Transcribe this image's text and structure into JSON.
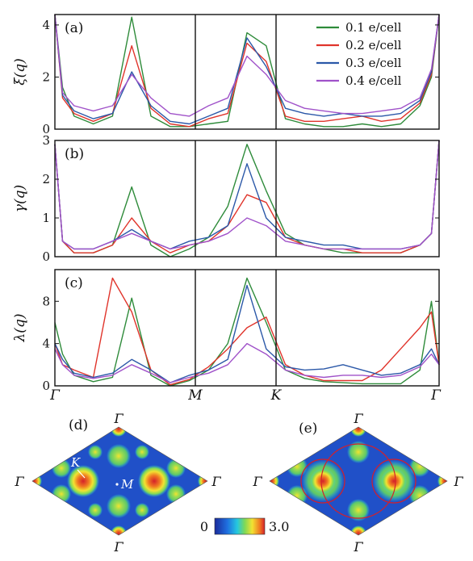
{
  "figure": {
    "panels": [
      {
        "label": "(a)",
        "ylabel": "ξ(q)",
        "yticks": [
          "0",
          "2",
          "4"
        ]
      },
      {
        "label": "(b)",
        "ylabel": "γ(q)",
        "yticks": [
          "0",
          "1",
          "2",
          "3"
        ]
      },
      {
        "label": "(c)",
        "ylabel": "λ(q)",
        "yticks": [
          "0",
          "4",
          "8"
        ]
      }
    ],
    "xticks": [
      "Γ",
      "M",
      "K",
      "Γ"
    ],
    "legend": [
      "0.1 e/cell",
      "0.2 e/cell",
      "0.3 e/cell",
      "0.4 e/cell"
    ],
    "maps": [
      {
        "label": "(d)",
        "corner_labels": [
          "Γ",
          "Γ",
          "Γ",
          "Γ"
        ],
        "point_labels": [
          "K",
          "M"
        ]
      },
      {
        "label": "(e)",
        "corner_labels": [
          "Γ",
          "Γ",
          "Γ",
          "Γ"
        ]
      }
    ],
    "colorbar": {
      "min_label": "0",
      "max_label": "3.0"
    }
  },
  "chart_data": [
    {
      "type": "line",
      "panel": "(a)",
      "ylabel": "ξ(q)",
      "ylim": [
        0,
        4.4
      ],
      "x_ticks": [
        "Γ",
        "M",
        "K",
        "Γ"
      ],
      "x": [
        0,
        0.02,
        0.05,
        0.1,
        0.15,
        0.2,
        0.25,
        0.3,
        0.35,
        0.4,
        0.45,
        0.5,
        0.55,
        0.6,
        0.65,
        0.7,
        0.75,
        0.8,
        0.85,
        0.9,
        0.95,
        0.98,
        1.0
      ],
      "series": [
        {
          "name": "0.1 e/cell",
          "color": "#2e8b3a",
          "values": [
            4.4,
            1.6,
            0.5,
            0.2,
            0.5,
            4.3,
            0.5,
            0.1,
            0.1,
            0.2,
            0.3,
            3.7,
            3.2,
            0.4,
            0.2,
            0.1,
            0.1,
            0.2,
            0.1,
            0.2,
            0.9,
            2.0,
            4.4
          ]
        },
        {
          "name": "0.2 e/cell",
          "color": "#e0342b",
          "values": [
            4.4,
            1.2,
            0.6,
            0.3,
            0.6,
            3.2,
            0.8,
            0.2,
            0.1,
            0.4,
            0.6,
            3.3,
            2.6,
            0.5,
            0.3,
            0.3,
            0.4,
            0.5,
            0.3,
            0.4,
            1.0,
            2.1,
            4.4
          ]
        },
        {
          "name": "0.3 e/cell",
          "color": "#2b58a8",
          "values": [
            4.4,
            1.3,
            0.7,
            0.4,
            0.6,
            2.2,
            0.9,
            0.3,
            0.2,
            0.5,
            0.8,
            3.5,
            2.4,
            0.8,
            0.6,
            0.5,
            0.6,
            0.5,
            0.5,
            0.6,
            1.1,
            2.2,
            4.4
          ]
        },
        {
          "name": "0.4 e/cell",
          "color": "#a052c9",
          "values": [
            4.4,
            1.4,
            0.9,
            0.7,
            0.9,
            2.1,
            1.2,
            0.6,
            0.5,
            0.9,
            1.2,
            2.8,
            2.1,
            1.1,
            0.8,
            0.7,
            0.6,
            0.6,
            0.7,
            0.8,
            1.2,
            2.3,
            4.4
          ]
        }
      ]
    },
    {
      "type": "line",
      "panel": "(b)",
      "ylabel": "γ(q)",
      "ylim": [
        0,
        3
      ],
      "x_ticks": [
        "Γ",
        "M",
        "K",
        "Γ"
      ],
      "x": [
        0,
        0.02,
        0.05,
        0.1,
        0.15,
        0.2,
        0.25,
        0.3,
        0.35,
        0.4,
        0.45,
        0.5,
        0.55,
        0.6,
        0.65,
        0.7,
        0.75,
        0.8,
        0.85,
        0.9,
        0.95,
        0.98,
        1.0
      ],
      "series": [
        {
          "name": "0.1 e/cell",
          "color": "#2e8b3a",
          "values": [
            2.9,
            0.4,
            0.1,
            0.1,
            0.3,
            1.8,
            0.3,
            0.0,
            0.2,
            0.5,
            1.3,
            2.9,
            1.7,
            0.6,
            0.3,
            0.2,
            0.1,
            0.1,
            0.1,
            0.1,
            0.3,
            0.6,
            3.0
          ]
        },
        {
          "name": "0.2 e/cell",
          "color": "#e0342b",
          "values": [
            2.9,
            0.4,
            0.1,
            0.1,
            0.3,
            1.0,
            0.4,
            0.1,
            0.3,
            0.4,
            0.8,
            1.6,
            1.4,
            0.5,
            0.3,
            0.2,
            0.2,
            0.1,
            0.1,
            0.1,
            0.3,
            0.6,
            3.0
          ]
        },
        {
          "name": "0.3 e/cell",
          "color": "#2b58a8",
          "values": [
            2.9,
            0.4,
            0.2,
            0.2,
            0.4,
            0.7,
            0.4,
            0.2,
            0.4,
            0.5,
            0.8,
            2.4,
            1.0,
            0.5,
            0.4,
            0.3,
            0.3,
            0.2,
            0.2,
            0.2,
            0.3,
            0.6,
            3.0
          ]
        },
        {
          "name": "0.4 e/cell",
          "color": "#a052c9",
          "values": [
            2.9,
            0.4,
            0.2,
            0.2,
            0.4,
            0.6,
            0.4,
            0.2,
            0.3,
            0.4,
            0.6,
            1.0,
            0.8,
            0.4,
            0.3,
            0.2,
            0.2,
            0.2,
            0.2,
            0.2,
            0.3,
            0.6,
            3.0
          ]
        }
      ]
    },
    {
      "type": "line",
      "panel": "(c)",
      "ylabel": "λ(q)",
      "ylim": [
        0,
        11
      ],
      "x_ticks": [
        "Γ",
        "M",
        "K",
        "Γ"
      ],
      "x": [
        0,
        0.02,
        0.05,
        0.1,
        0.15,
        0.2,
        0.25,
        0.3,
        0.35,
        0.4,
        0.45,
        0.5,
        0.55,
        0.6,
        0.65,
        0.7,
        0.75,
        0.8,
        0.85,
        0.9,
        0.95,
        0.98,
        1.0
      ],
      "series": [
        {
          "name": "0.1 e/cell",
          "color": "#2e8b3a",
          "values": [
            6.0,
            3.0,
            1.0,
            0.4,
            0.8,
            8.3,
            1.0,
            0.0,
            0.5,
            1.5,
            4.0,
            10.2,
            6.0,
            1.5,
            0.7,
            0.4,
            0.3,
            0.2,
            0.2,
            0.2,
            1.5,
            8.0,
            2.0
          ]
        },
        {
          "name": "0.2 e/cell",
          "color": "#e0342b",
          "values": [
            4.0,
            2.0,
            1.5,
            0.8,
            10.2,
            7.0,
            1.5,
            0.1,
            0.6,
            1.8,
            3.5,
            5.5,
            6.5,
            2.0,
            1.0,
            0.5,
            0.5,
            0.5,
            1.5,
            3.5,
            5.5,
            7.0,
            2.0
          ]
        },
        {
          "name": "0.3 e/cell",
          "color": "#2b58a8",
          "values": [
            4.0,
            2.5,
            1.2,
            0.8,
            1.2,
            2.5,
            1.5,
            0.3,
            1.0,
            1.5,
            2.5,
            9.5,
            3.5,
            1.8,
            1.5,
            1.6,
            2.0,
            1.5,
            1.0,
            1.2,
            2.0,
            3.5,
            2.0
          ]
        },
        {
          "name": "0.4 e/cell",
          "color": "#a052c9",
          "values": [
            3.5,
            2.0,
            1.0,
            0.7,
            1.0,
            2.0,
            1.2,
            0.3,
            0.8,
            1.2,
            2.0,
            4.0,
            3.0,
            1.5,
            1.0,
            0.8,
            1.0,
            1.0,
            0.8,
            1.0,
            1.8,
            3.0,
            2.0
          ]
        }
      ]
    },
    {
      "type": "heatmap",
      "panel": "(d)",
      "zlim": [
        0,
        3.0
      ],
      "corner_labels": [
        "Γ",
        "Γ",
        "Γ",
        "Γ"
      ],
      "point_labels": [
        "K",
        "M"
      ]
    },
    {
      "type": "heatmap",
      "panel": "(e)",
      "zlim": [
        0,
        3.0
      ],
      "corner_labels": [
        "Γ",
        "Γ",
        "Γ",
        "Γ"
      ]
    }
  ]
}
